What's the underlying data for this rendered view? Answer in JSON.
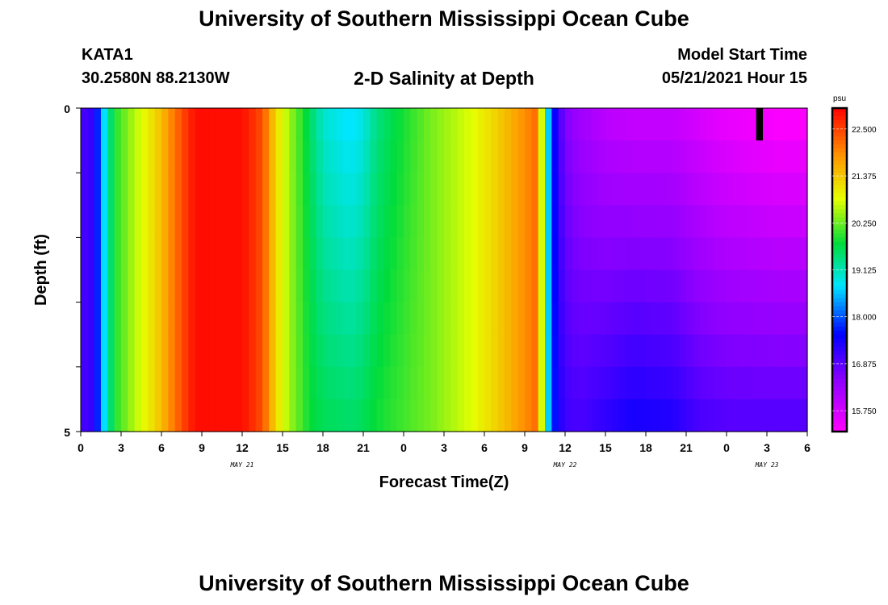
{
  "header": {
    "title": "University of Southern Mississippi Ocean Cube",
    "station": "KATA1",
    "coordinates": "30.2580N  88.2130W",
    "plot_title": "2-D Salinity at Depth",
    "model_start_label": "Model Start Time",
    "model_start_time": "05/21/2021 Hour 15"
  },
  "footer": {
    "title": "University of Southern Mississippi Ocean Cube"
  },
  "chart_data": {
    "type": "heatmap",
    "title": "2-D Salinity at Depth",
    "xlabel": "Forecast Time(Z)",
    "ylabel": "Depth (ft)",
    "x_tick_labels": [
      "0",
      "3",
      "6",
      "9",
      "12",
      "15",
      "18",
      "21",
      "0",
      "3",
      "6",
      "9",
      "12",
      "15",
      "18",
      "21",
      "0",
      "3",
      "6"
    ],
    "date_labels": [
      "MAY 21",
      "MAY 22",
      "MAY 23"
    ],
    "y_tick_labels": [
      "0",
      "5"
    ],
    "xlim_hours": [
      0,
      54
    ],
    "ylim_ft": [
      0,
      5
    ],
    "colorbar": {
      "unit": "psu",
      "tick_labels": [
        "22.500",
        "21.375",
        "20.250",
        "19.125",
        "18.000",
        "16.875",
        "15.750"
      ],
      "range": [
        15.25,
        23.0
      ]
    },
    "depth_layers_ft": [
      0.25,
      0.75,
      1.25,
      1.75,
      2.25,
      2.75,
      3.25,
      3.75,
      4.25,
      4.75
    ],
    "surface_profile": {
      "hours": [
        0,
        1,
        1.5,
        2.5,
        4,
        5.5,
        6.5,
        7.5,
        8.5,
        12,
        13.5,
        14.5,
        15.5,
        17,
        18,
        20,
        21,
        22,
        26,
        29,
        31,
        33,
        34,
        34.5,
        35,
        35.5,
        36,
        37,
        39,
        41,
        44,
        46,
        48,
        50,
        52,
        54
      ],
      "salinity_psu": [
        17.0,
        17.2,
        18.3,
        19.9,
        20.6,
        21.2,
        21.8,
        22.4,
        22.9,
        22.9,
        22.4,
        21.2,
        20.5,
        19.6,
        19.0,
        18.7,
        18.9,
        19.4,
        20.3,
        20.8,
        21.3,
        21.9,
        22.2,
        19.3,
        17.9,
        17.1,
        16.6,
        16.3,
        16.0,
        15.9,
        15.9,
        15.7,
        15.5,
        15.4,
        15.3,
        15.3
      ]
    },
    "bottom_profile": {
      "hours": [
        0,
        1,
        1.5,
        2.5,
        4,
        5.5,
        6.5,
        7.5,
        8.5,
        12,
        13.5,
        14.5,
        15.5,
        17,
        18,
        20,
        21,
        22,
        26,
        29,
        31,
        33,
        34,
        34.5,
        35,
        35.5,
        36,
        37,
        39,
        41,
        44,
        46,
        48,
        50,
        52,
        54
      ],
      "salinity_psu": [
        17.0,
        17.2,
        18.3,
        19.9,
        20.6,
        21.2,
        21.8,
        22.4,
        22.9,
        22.9,
        22.4,
        21.2,
        20.5,
        19.8,
        19.6,
        19.5,
        19.6,
        19.8,
        20.3,
        20.8,
        21.3,
        21.9,
        22.2,
        19.3,
        17.9,
        17.4,
        17.1,
        17.0,
        17.2,
        17.4,
        17.3,
        17.0,
        16.9,
        16.9,
        16.9,
        16.9
      ]
    },
    "missing_marker": {
      "hour_from": 50.2,
      "hour_to": 50.7,
      "depth_from_ft": 0,
      "depth_to_ft": 0.5
    },
    "grid": false,
    "legend": "right colorbar"
  }
}
